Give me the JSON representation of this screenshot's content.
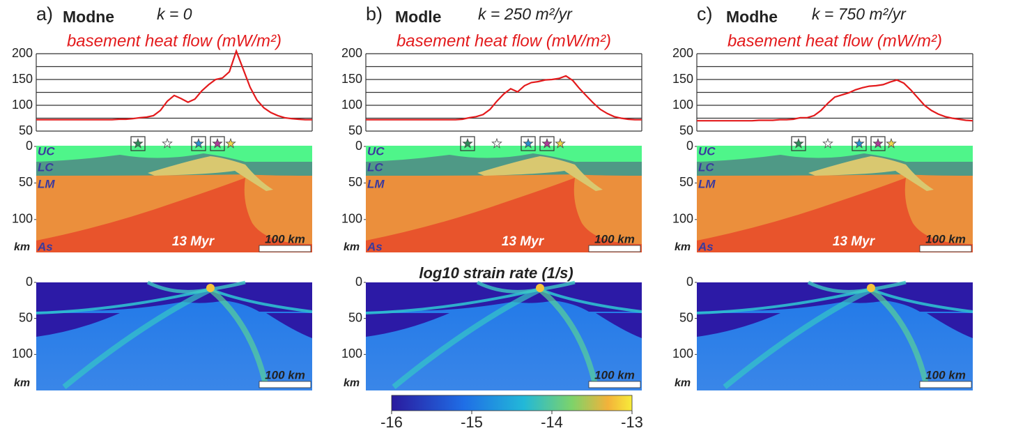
{
  "chart_data": [
    {
      "type": "line",
      "title": "basement heat flow (mW/m²)",
      "color": "#e31a1c",
      "values": [
        72,
        72,
        72,
        72,
        72,
        72,
        72,
        72,
        72,
        72,
        72,
        72,
        73,
        73,
        74,
        76,
        77,
        80,
        90,
        108,
        119,
        113,
        106,
        112,
        128,
        140,
        150,
        153,
        165,
        205,
        170,
        135,
        110,
        95,
        86,
        80,
        76,
        74,
        73,
        72,
        72
      ],
      "ylim": [
        50,
        200
      ],
      "yticks": [
        50,
        100,
        150,
        200
      ],
      "grid_ticks": [
        50,
        75,
        100,
        125,
        150,
        175,
        200
      ]
    },
    {
      "type": "line",
      "title": "basement heat flow (mW/m²)",
      "color": "#e31a1c",
      "values": [
        72,
        72,
        72,
        72,
        72,
        72,
        72,
        72,
        72,
        72,
        72,
        72,
        72,
        72,
        73,
        76,
        78,
        82,
        92,
        108,
        122,
        132,
        126,
        138,
        144,
        146,
        149,
        150,
        152,
        157,
        148,
        132,
        118,
        104,
        92,
        84,
        78,
        75,
        73,
        72,
        72
      ],
      "ylim": [
        50,
        200
      ],
      "yticks": [
        50,
        100,
        150,
        200
      ],
      "grid_ticks": [
        50,
        75,
        100,
        125,
        150,
        175,
        200
      ]
    },
    {
      "type": "line",
      "title": "basement heat flow (mW/m²)",
      "color": "#e31a1c",
      "values": [
        70,
        70,
        70,
        70,
        70,
        70,
        70,
        70,
        70,
        71,
        71,
        71,
        72,
        72,
        73,
        76,
        76,
        80,
        90,
        104,
        116,
        120,
        124,
        130,
        134,
        137,
        138,
        140,
        145,
        149,
        143,
        130,
        115,
        100,
        90,
        83,
        78,
        75,
        73,
        71,
        70
      ],
      "ylim": [
        50,
        200
      ],
      "yticks": [
        50,
        100,
        150,
        200
      ],
      "grid_ticks": [
        50,
        75,
        100,
        125,
        150,
        175,
        200
      ]
    }
  ],
  "panels": [
    {
      "label": "a)",
      "model": "Modne",
      "k": "k = 0",
      "section": {
        "ylim": [
          0,
          145
        ],
        "yticks": [
          0,
          50,
          100
        ],
        "unit": "km",
        "layers": [
          "UC",
          "LC",
          "LM",
          "As"
        ],
        "time": "13 Myr",
        "scale_bar": "100 km"
      },
      "strain_rate": {
        "ylim": [
          0,
          150
        ],
        "yticks": [
          0,
          50,
          100
        ],
        "unit": "km",
        "scale_bar": "100 km"
      }
    },
    {
      "label": "b)",
      "model": "Modle",
      "k": "k = 250 m²/yr",
      "section": {
        "ylim": [
          0,
          145
        ],
        "yticks": [
          0,
          50,
          100
        ],
        "unit": "km",
        "layers": [
          "UC",
          "LC",
          "LM",
          "As"
        ],
        "time": "13 Myr",
        "scale_bar": "100 km"
      },
      "strain_rate": {
        "ylim": [
          0,
          150
        ],
        "yticks": [
          0,
          50,
          100
        ],
        "unit": "km",
        "scale_bar": "100 km"
      }
    },
    {
      "label": "c)",
      "model": "Modhe",
      "k": "k = 750 m²/yr",
      "section": {
        "ylim": [
          0,
          145
        ],
        "yticks": [
          0,
          50,
          100
        ],
        "unit": "km",
        "layers": [
          "UC",
          "LC",
          "LM",
          "As"
        ],
        "time": "13 Myr",
        "scale_bar": "100 km"
      },
      "strain_rate": {
        "ylim": [
          0,
          150
        ],
        "yticks": [
          0,
          50,
          100
        ],
        "unit": "km",
        "scale_bar": "100 km"
      }
    }
  ],
  "colorbar": {
    "title": "log10 strain rate (1/s)",
    "lim": [
      -16,
      -13
    ],
    "ticks": [
      -16,
      -15,
      -14,
      -13
    ]
  }
}
